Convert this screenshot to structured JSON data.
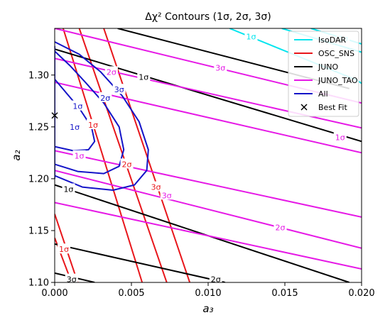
{
  "chart_data": {
    "type": "line",
    "title": "Δχ² Contours (1σ, 2σ, 3σ)",
    "xlabel": "a₃",
    "ylabel": "a₂",
    "xlim": [
      0.0,
      0.02
    ],
    "ylim": [
      1.1,
      1.345
    ],
    "xticks": [
      "0.000",
      "0.005",
      "0.010",
      "0.015",
      "0.020"
    ],
    "xtick_values": [
      0.0,
      0.005,
      0.01,
      0.015,
      0.02
    ],
    "yticks": [
      "1.10",
      "1.15",
      "1.20",
      "1.25",
      "1.30"
    ],
    "ytick_values": [
      1.1,
      1.15,
      1.2,
      1.25,
      1.3
    ],
    "grid": false,
    "legend_position": "top-right",
    "legend": [
      {
        "name": "IsoDAR",
        "color": "#00e5ee",
        "marker": "line"
      },
      {
        "name": "OSC_SNS",
        "color": "#e8161b",
        "marker": "line"
      },
      {
        "name": "JUNO",
        "color": "#000000",
        "marker": "line"
      },
      {
        "name": "JUNO_TAO",
        "color": "#e619e6",
        "marker": "line"
      },
      {
        "name": "All",
        "color": "#1414c8",
        "marker": "line"
      },
      {
        "name": "Best Fit",
        "color": "#000000",
        "marker": "x"
      }
    ],
    "best_fit": {
      "x": 0.0,
      "y": 1.261
    },
    "series": [
      {
        "name": "IsoDAR",
        "color": "#00e5ee",
        "width": 2.0,
        "lines": [
          {
            "points": [
              [
                0.0114,
                1.345
              ],
              [
                0.0197,
                1.295
              ],
              [
                0.02,
                1.292
              ]
            ],
            "label": "1σ",
            "label_at": [
              0.0128,
              1.337
            ]
          },
          {
            "points": [
              [
                0.0148,
                1.345
              ],
              [
                0.02,
                1.322
              ]
            ],
            "label": "2σ",
            "label_at": [
              0.0188,
              1.335
            ]
          },
          {
            "points": [
              [
                0.0167,
                1.345
              ],
              [
                0.02,
                1.33
              ]
            ],
            "label": "",
            "label_at": null
          }
        ]
      },
      {
        "name": "OSC_SNS",
        "color": "#e8161b",
        "width": 2.0,
        "lines": [
          {
            "points": [
              [
                0.00055,
                1.345
              ],
              [
                0.0057,
                1.1
              ]
            ],
            "label": "1σ",
            "label_at": [
              0.0025,
              1.252
            ]
          },
          {
            "points": [
              [
                0.0016,
                1.345
              ],
              [
                0.0073,
                1.1
              ]
            ],
            "label": "2σ",
            "label_at": [
              0.0047,
              1.214
            ]
          },
          {
            "points": [
              [
                0.0032,
                1.345
              ],
              [
                0.0088,
                1.1
              ]
            ],
            "label": "3σ",
            "label_at": [
              0.0066,
              1.192
            ]
          },
          {
            "points": [
              [
                0.0,
                1.166
              ],
              [
                0.0015,
                1.1
              ]
            ],
            "label": "1σ",
            "label_at": [
              0.0006,
              1.132
            ]
          },
          {
            "points": [
              [
                0.0,
                1.143
              ],
              [
                0.0011,
                1.1
              ]
            ],
            "label": "",
            "label_at": null
          }
        ]
      },
      {
        "name": "JUNO",
        "color": "#000000",
        "width": 2.0,
        "lines": [
          {
            "points": [
              [
                0.0,
                1.325
              ],
              [
                0.02,
                1.236
              ]
            ],
            "label": "1σ",
            "label_at": [
              0.0058,
              1.298
            ]
          },
          {
            "points": [
              [
                0.0,
                1.194
              ],
              [
                0.0192,
                1.1
              ]
            ],
            "label": "1σ",
            "label_at": [
              0.0009,
              1.19
            ]
          },
          {
            "points": [
              [
                0.0041,
                1.345
              ],
              [
                0.0192,
                1.287
              ]
            ],
            "label": "",
            "label_at": null
          },
          {
            "points": [
              [
                0.0,
                1.109
              ],
              [
                0.0026,
                1.1
              ]
            ],
            "label": "3σ",
            "label_at": [
              0.0011,
              1.103
            ]
          },
          {
            "points": [
              [
                0.0,
                1.137
              ],
              [
                0.0111,
                1.1
              ]
            ],
            "label": "2σ",
            "label_at": [
              0.0105,
              1.103
            ]
          }
        ]
      },
      {
        "name": "JUNO_TAO",
        "color": "#e619e6",
        "width": 2.0,
        "lines": [
          {
            "points": [
              [
                0.0,
                1.345
              ],
              [
                0.02,
                1.273
              ]
            ],
            "label": "3σ",
            "label_at": [
              0.0108,
              1.307
            ]
          },
          {
            "points": [
              [
                0.0,
                1.316
              ],
              [
                0.02,
                1.249
              ]
            ],
            "label": "2σ",
            "label_at": [
              0.0037,
              1.303
            ]
          },
          {
            "points": [
              [
                0.0,
                1.293
              ],
              [
                0.02,
                1.225
              ]
            ],
            "label": "1σ",
            "label_at": [
              0.0186,
              1.24
            ]
          },
          {
            "points": [
              [
                0.0,
                1.227
              ],
              [
                0.02,
                1.163
              ]
            ],
            "label": "1σ",
            "label_at": [
              0.0016,
              1.222
            ]
          },
          {
            "points": [
              [
                0.0,
                1.208
              ],
              [
                0.02,
                1.133
              ]
            ],
            "label": "3σ",
            "label_at": [
              0.0073,
              1.184
            ]
          },
          {
            "points": [
              [
                0.0,
                1.177
              ],
              [
                0.02,
                1.113
              ]
            ],
            "label": "2σ",
            "label_at": [
              0.0147,
              1.153
            ]
          }
        ]
      },
      {
        "name": "All",
        "color": "#1414c8",
        "width": 2.0,
        "lines": [
          {
            "points": [
              [
                0.0,
                1.231
              ],
              [
                0.0012,
                1.227
              ],
              [
                0.0022,
                1.228
              ],
              [
                0.0026,
                1.236
              ],
              [
                0.0024,
                1.25
              ],
              [
                0.0016,
                1.268
              ],
              [
                0.0008,
                1.282
              ],
              [
                0.0,
                1.296
              ]
            ],
            "label": "1σ",
            "label_at": [
              0.0013,
              1.25
            ]
          },
          {
            "points": [
              [
                0.0,
                1.214
              ],
              [
                0.0015,
                1.207
              ],
              [
                0.0032,
                1.205
              ],
              [
                0.0042,
                1.212
              ],
              [
                0.0045,
                1.228
              ],
              [
                0.0042,
                1.25
              ],
              [
                0.0032,
                1.273
              ],
              [
                0.002,
                1.293
              ],
              [
                0.001,
                1.309
              ],
              [
                0.0,
                1.323
              ]
            ],
            "label": "2σ",
            "label_at": [
              0.0033,
              1.278
            ]
          },
          {
            "points": [
              [
                0.0,
                1.203
              ],
              [
                0.0018,
                1.192
              ],
              [
                0.0038,
                1.189
              ],
              [
                0.0052,
                1.194
              ],
              [
                0.006,
                1.208
              ],
              [
                0.0061,
                1.228
              ],
              [
                0.0055,
                1.255
              ],
              [
                0.0044,
                1.28
              ],
              [
                0.003,
                1.303
              ],
              [
                0.0016,
                1.32
              ],
              [
                0.0,
                1.332
              ]
            ],
            "label": "3σ",
            "label_at": [
              0.0042,
              1.286
            ]
          },
          {
            "points": [
              [
                0.0,
                1.328
              ],
              [
                0.0,
                1.2
              ]
            ],
            "label": "1σ",
            "label_at": [
              0.0015,
              1.27
            ]
          }
        ]
      }
    ]
  }
}
